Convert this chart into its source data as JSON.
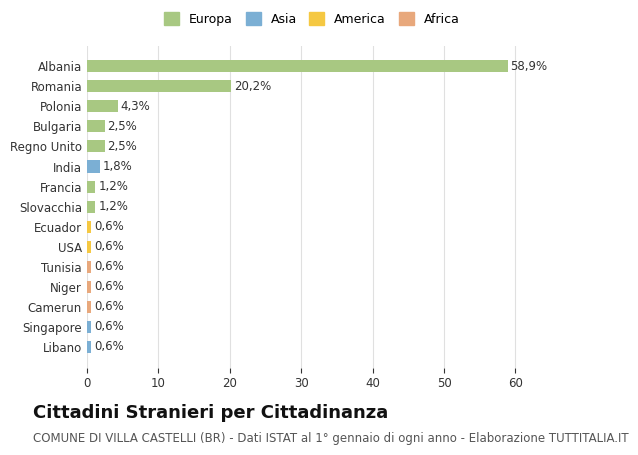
{
  "countries": [
    "Albania",
    "Romania",
    "Polonia",
    "Bulgaria",
    "Regno Unito",
    "India",
    "Francia",
    "Slovacchia",
    "Ecuador",
    "USA",
    "Tunisia",
    "Niger",
    "Camerun",
    "Singapore",
    "Libano"
  ],
  "values": [
    58.9,
    20.2,
    4.3,
    2.5,
    2.5,
    1.8,
    1.2,
    1.2,
    0.6,
    0.6,
    0.6,
    0.6,
    0.6,
    0.6,
    0.6
  ],
  "labels": [
    "58,9%",
    "20,2%",
    "4,3%",
    "2,5%",
    "2,5%",
    "1,8%",
    "1,2%",
    "1,2%",
    "0,6%",
    "0,6%",
    "0,6%",
    "0,6%",
    "0,6%",
    "0,6%",
    "0,6%"
  ],
  "categories": [
    "Europa",
    "Asia",
    "America",
    "Africa"
  ],
  "bar_colors": [
    "#a8c882",
    "#a8c882",
    "#a8c882",
    "#a8c882",
    "#a8c882",
    "#7bafd4",
    "#a8c882",
    "#a8c882",
    "#f5c842",
    "#f5c842",
    "#e8a87c",
    "#e8a87c",
    "#e8a87c",
    "#7bafd4",
    "#7bafd4"
  ],
  "legend_colors": [
    "#a8c882",
    "#7bafd4",
    "#f5c842",
    "#e8a87c"
  ],
  "background_color": "#ffffff",
  "grid_color": "#e0e0e0",
  "xlim": [
    0,
    63
  ],
  "xticks": [
    0,
    10,
    20,
    30,
    40,
    50,
    60
  ],
  "title": "Cittadini Stranieri per Cittadinanza",
  "subtitle": "COMUNE DI VILLA CASTELLI (BR) - Dati ISTAT al 1° gennaio di ogni anno - Elaborazione TUTTITALIA.IT",
  "title_fontsize": 13,
  "subtitle_fontsize": 8.5,
  "label_fontsize": 8.5,
  "tick_fontsize": 8.5
}
